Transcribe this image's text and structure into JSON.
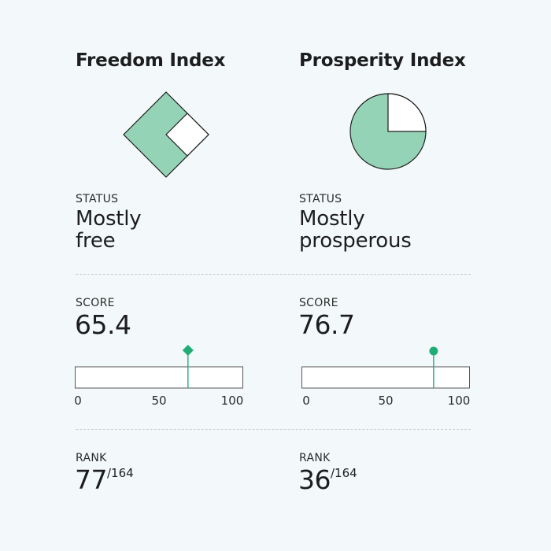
{
  "colors": {
    "background": "#f3f9fa",
    "fill": "#95d3b6",
    "marker": "#1fad75",
    "text": "#1d1d1f",
    "divider": "#c7cdcf"
  },
  "freedom": {
    "title": "Freedom Index",
    "status_label": "STATUS",
    "status_line1": "Mostly",
    "status_line2": "free",
    "score_label": "SCORE",
    "score": "65.4",
    "score_value": 65.4,
    "axis_ticks": [
      "0",
      "50",
      "100"
    ],
    "rank_label": "RANK",
    "rank": "77",
    "rank_total": "/164",
    "icon": "diamond-quarter-icon",
    "marker_icon": "diamond-marker-icon"
  },
  "prosperity": {
    "title": "Prosperity Index",
    "status_label": "STATUS",
    "status_line1": "Mostly",
    "status_line2": "prosperous",
    "score_label": "SCORE",
    "score": "76.7",
    "score_value": 76.7,
    "axis_ticks": [
      "0",
      "50",
      "100"
    ],
    "rank_label": "RANK",
    "rank": "36",
    "rank_total": "/164",
    "icon": "pie-quarter-icon",
    "marker_icon": "circle-marker-icon"
  }
}
